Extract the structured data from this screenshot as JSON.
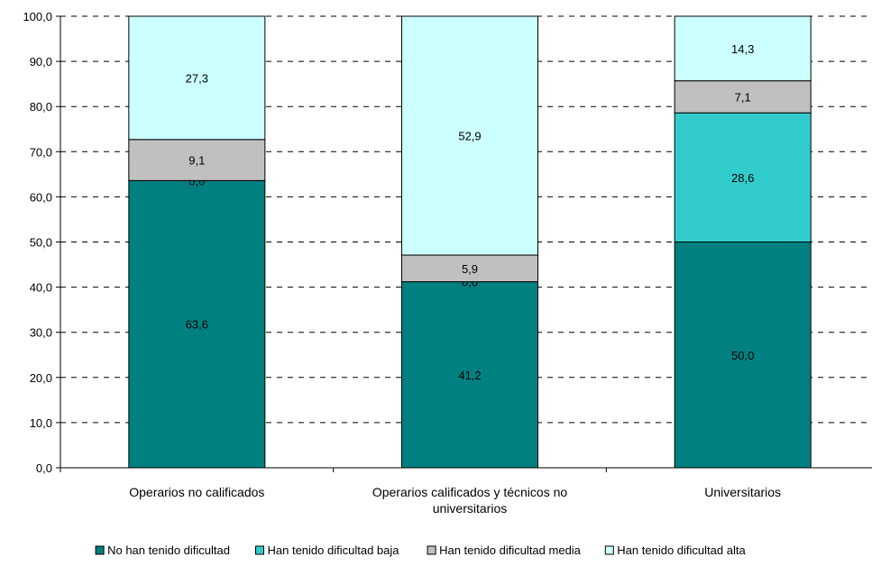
{
  "chart_data": {
    "type": "bar",
    "stacked": true,
    "categories": [
      [
        "Operarios no calificados"
      ],
      [
        "Operarios calificados y técnicos no",
        "universitarios"
      ],
      [
        "Universitarios"
      ]
    ],
    "series": [
      {
        "name": "No han tenido dificultad",
        "color": "#008080",
        "values": [
          63.6,
          41.2,
          50.0
        ],
        "labels": [
          "63,6",
          "41,2",
          "50,0"
        ]
      },
      {
        "name": "Han tenido dificultad baja",
        "color": "#33CCCC",
        "values": [
          0.0,
          0.0,
          28.6
        ],
        "labels": [
          "0,0",
          "0,0",
          "28,6"
        ]
      },
      {
        "name": "Han tenido dificultad media",
        "color": "#C0C0C0",
        "values": [
          9.1,
          5.9,
          7.1
        ],
        "labels": [
          "9,1",
          "5,9",
          "7,1"
        ]
      },
      {
        "name": "Han tenido dificultad alta",
        "color": "#CCFFFF",
        "values": [
          27.3,
          52.9,
          14.3
        ],
        "labels": [
          "27,3",
          "52,9",
          "14,3"
        ]
      }
    ],
    "yticks": [
      "0,0",
      "10,0",
      "20,0",
      "30,0",
      "40,0",
      "50,0",
      "60,0",
      "70,0",
      "80,0",
      "90,0",
      "100,0"
    ],
    "ylim": [
      0,
      100
    ],
    "grid": true,
    "legend_position": "bottom"
  }
}
